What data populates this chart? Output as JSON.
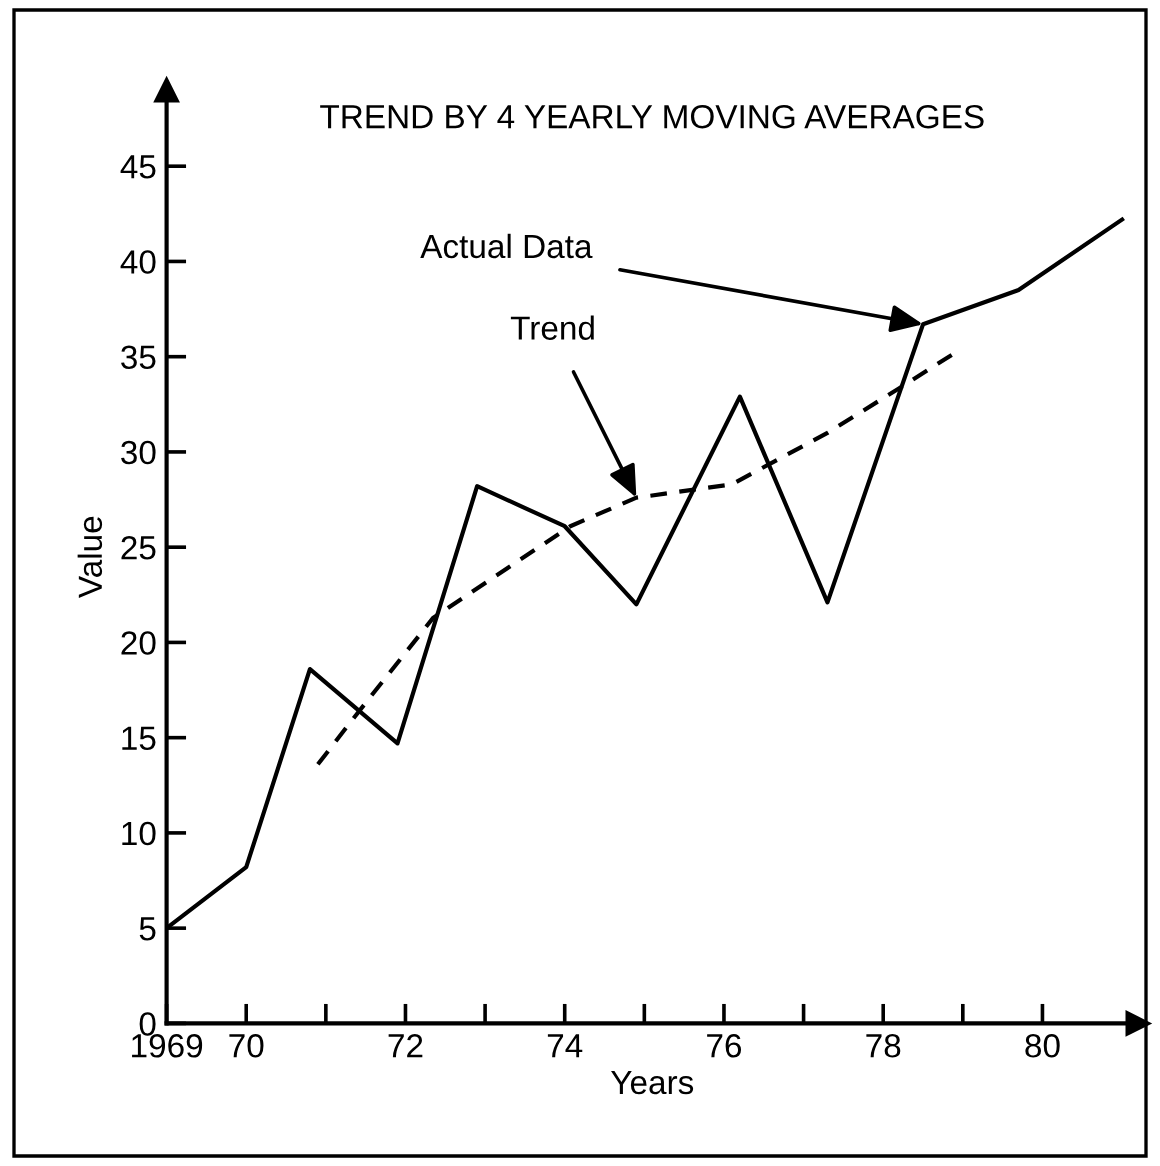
{
  "chart_data": {
    "type": "line",
    "title": "TREND BY 4 YEARLY MOVING AVERAGES",
    "xlabel": "Years",
    "ylabel": "Value",
    "xlim": [
      1969,
      1981.2
    ],
    "ylim": [
      0,
      49
    ],
    "xticks": [
      {
        "value": 1969,
        "label": "1969"
      },
      {
        "value": 1970,
        "label": "70"
      },
      {
        "value": 1971,
        "label": null
      },
      {
        "value": 1972,
        "label": "72"
      },
      {
        "value": 1973,
        "label": null
      },
      {
        "value": 1974,
        "label": "74"
      },
      {
        "value": 1975,
        "label": null
      },
      {
        "value": 1976,
        "label": "76"
      },
      {
        "value": 1977,
        "label": null
      },
      {
        "value": 1978,
        "label": "78"
      },
      {
        "value": 1979,
        "label": null
      },
      {
        "value": 1980,
        "label": "80"
      }
    ],
    "yticks": [
      0,
      5,
      10,
      15,
      20,
      25,
      30,
      35,
      40,
      45
    ],
    "grid": false,
    "marker": "none",
    "annotations": [
      {
        "text": "Actual Data",
        "x": 1978.5,
        "y": 36.7
      },
      {
        "text": "Trend",
        "x": 1974.9,
        "y": 27.6
      }
    ],
    "series": [
      {
        "color": "#000000",
        "line_style": "solid",
        "x": [
          1969,
          1970.0,
          1970.8,
          1971.9,
          1972.9,
          1974.0,
          1974.9,
          1976.2,
          1977.3,
          1978.5,
          1979.7,
          1981.0
        ],
        "values": [
          5,
          8.2,
          18.6,
          14.7,
          28.2,
          26.1,
          22.0,
          32.9,
          22.1,
          36.7,
          38.5,
          42.2
        ]
      },
      {
        "color": "#000000",
        "line_style": "dashed",
        "x": [
          1970.9,
          1971.4,
          1972.35,
          1974.07,
          1974.9,
          1976.1,
          1977.3,
          1978.3,
          1978.9
        ],
        "values": [
          13.6,
          16.3,
          21.3,
          26.1,
          27.6,
          28.3,
          31.0,
          33.6,
          35.2
        ]
      }
    ]
  }
}
